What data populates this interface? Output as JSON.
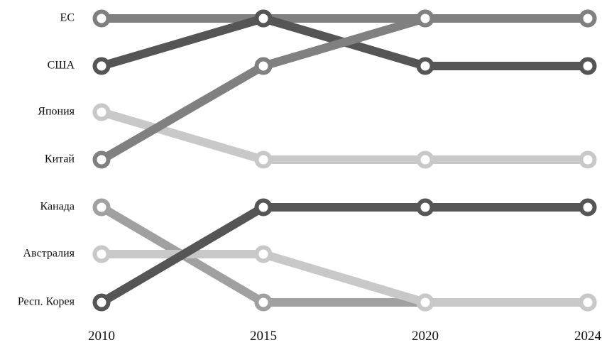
{
  "chart_data": {
    "type": "line",
    "title": "",
    "xlabel": "",
    "ylabel": "",
    "x": [
      2010,
      2015,
      2020,
      2024
    ],
    "rank_labels": [
      "ЕС",
      "США",
      "Япония",
      "Китай",
      "Канада",
      "Австралия",
      "Респ. Корея"
    ],
    "series": [
      {
        "id": "eu",
        "ranks": [
          1,
          1,
          1,
          1
        ],
        "color": "#808080"
      },
      {
        "id": "usa",
        "ranks": [
          2,
          1,
          2,
          2
        ],
        "color": "#555555"
      },
      {
        "id": "japan",
        "ranks": [
          3,
          4,
          4,
          4
        ],
        "color": "#c8c8c8"
      },
      {
        "id": "china",
        "ranks": [
          4,
          2,
          1,
          1
        ],
        "color": "#808080"
      },
      {
        "id": "canada",
        "ranks": [
          5,
          7,
          7,
          7
        ],
        "color": "#a0a0a0"
      },
      {
        "id": "australia",
        "ranks": [
          6,
          6,
          7,
          7
        ],
        "color": "#c8c8c8"
      },
      {
        "id": "korea",
        "ranks": [
          7,
          5,
          5,
          5
        ],
        "color": "#555555"
      }
    ],
    "groups": [
      {
        "ranks": [
          1,
          2,
          3,
          4
        ]
      },
      {
        "ranks": [
          5,
          6,
          7
        ]
      }
    ],
    "ylim": [
      1,
      7
    ],
    "grid": false,
    "legend": "none"
  }
}
